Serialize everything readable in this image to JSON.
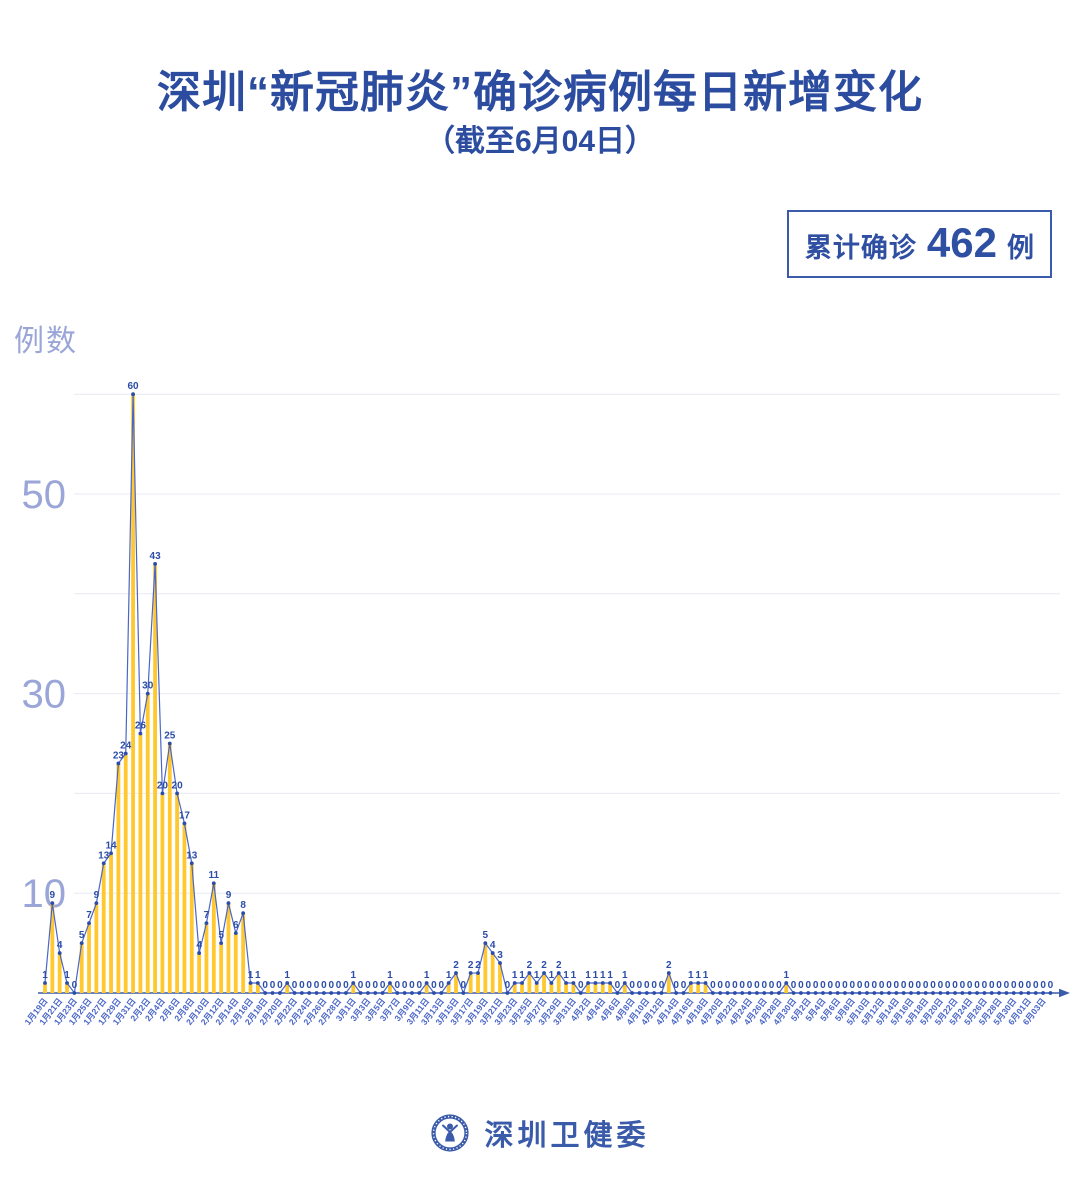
{
  "title": "深圳“新冠肺炎”确诊病例每日新增变化",
  "subtitle": "（截至6月04日）",
  "badge": {
    "prefix": "累计确诊",
    "value": "462",
    "suffix": "例"
  },
  "y_axis": {
    "unit_label": "例数",
    "ticks": [
      10,
      30,
      50
    ]
  },
  "footer": {
    "org": "深圳卫健委"
  },
  "chart_data": {
    "type": "bar",
    "title": "深圳“新冠肺炎”确诊病例每日新增变化（截至6月04日）",
    "xlabel": "",
    "ylabel": "例数",
    "ylim": [
      0,
      62
    ],
    "grid": true,
    "gridlines": [
      10,
      20,
      30,
      40,
      50,
      60
    ],
    "y_ticks": [
      10,
      30,
      50
    ],
    "x_label_every": 2,
    "cumulative_total": 462,
    "x": [
      "1月19日",
      "1月20日",
      "1月21日",
      "1月22日",
      "1月23日",
      "1月24日",
      "1月25日",
      "1月26日",
      "1月27日",
      "1月28日",
      "1月29日",
      "1月30日",
      "1月31日",
      "2月1日",
      "2月2日",
      "2月3日",
      "2月4日",
      "2月5日",
      "2月6日",
      "2月7日",
      "2月8日",
      "2月9日",
      "2月10日",
      "2月11日",
      "2月12日",
      "2月13日",
      "2月14日",
      "2月15日",
      "2月16日",
      "2月17日",
      "2月18日",
      "2月19日",
      "2月20日",
      "2月21日",
      "2月22日",
      "2月23日",
      "2月24日",
      "2月25日",
      "2月26日",
      "2月27日",
      "2月28日",
      "2月29日",
      "3月1日",
      "3月2日",
      "3月3日",
      "3月4日",
      "3月5日",
      "3月6日",
      "3月7日",
      "3月8日",
      "3月9日",
      "3月10日",
      "3月11日",
      "3月12日",
      "3月13日",
      "3月14日",
      "3月15日",
      "3月16日",
      "3月17日",
      "3月18日",
      "3月19日",
      "3月20日",
      "3月21日",
      "3月22日",
      "3月23日",
      "3月24日",
      "3月25日",
      "3月26日",
      "3月27日",
      "3月28日",
      "3月29日",
      "3月30日",
      "3月31日",
      "4月1日",
      "4月2日",
      "4月3日",
      "4月4日",
      "4月5日",
      "4月6日",
      "4月7日",
      "4月8日",
      "4月9日",
      "4月10日",
      "4月11日",
      "4月12日",
      "4月13日",
      "4月14日",
      "4月15日",
      "4月16日",
      "4月17日",
      "4月18日",
      "4月19日",
      "4月20日",
      "4月21日",
      "4月22日",
      "4月23日",
      "4月24日",
      "4月25日",
      "4月26日",
      "4月27日",
      "4月28日",
      "4月29日",
      "4月30日",
      "5月1日",
      "5月2日",
      "5月3日",
      "5月4日",
      "5月5日",
      "5月6日",
      "5月7日",
      "5月8日",
      "5月9日",
      "5月10日",
      "5月11日",
      "5月12日",
      "5月13日",
      "5月14日",
      "5月15日",
      "5月16日",
      "5月17日",
      "5月18日",
      "5月19日",
      "5月20日",
      "5月21日",
      "5月22日",
      "5月23日",
      "5月24日",
      "5月25日",
      "5月26日",
      "5月27日",
      "5月28日",
      "5月29日",
      "5月30日",
      "5月31日",
      "6月01日",
      "6月02日",
      "6月03日",
      "6月04日"
    ],
    "values": [
      1,
      9,
      4,
      1,
      0,
      5,
      7,
      9,
      13,
      14,
      23,
      24,
      60,
      26,
      30,
      43,
      20,
      25,
      20,
      17,
      13,
      4,
      7,
      11,
      5,
      9,
      6,
      8,
      1,
      1,
      0,
      0,
      0,
      1,
      0,
      0,
      0,
      0,
      0,
      0,
      0,
      0,
      1,
      0,
      0,
      0,
      0,
      1,
      0,
      0,
      0,
      0,
      1,
      0,
      0,
      1,
      2,
      0,
      2,
      2,
      5,
      4,
      3,
      0,
      1,
      1,
      2,
      1,
      2,
      1,
      2,
      1,
      1,
      0,
      1,
      1,
      1,
      1,
      0,
      1,
      0,
      0,
      0,
      0,
      0,
      2,
      0,
      0,
      1,
      1,
      1,
      0,
      0,
      0,
      0,
      0,
      0,
      0,
      0,
      0,
      0,
      1,
      0,
      0,
      0,
      0,
      0,
      0,
      0,
      0,
      0,
      0,
      0,
      0,
      0,
      0,
      0,
      0,
      0,
      0,
      0,
      0,
      0,
      0,
      0,
      0,
      0,
      0,
      0,
      0,
      0,
      0,
      0,
      0,
      0,
      0,
      0,
      0
    ],
    "colors": {
      "bar": "#FFC82E",
      "line": "#4a66c8",
      "dot": "#2b4da8",
      "label": "#2b4da8",
      "axis": "#3a5ba9",
      "grid": "#e8eaf4",
      "tick_text": "#9aa6d8",
      "x_label": "#4a66c8",
      "title": "#2c4ca0"
    }
  }
}
